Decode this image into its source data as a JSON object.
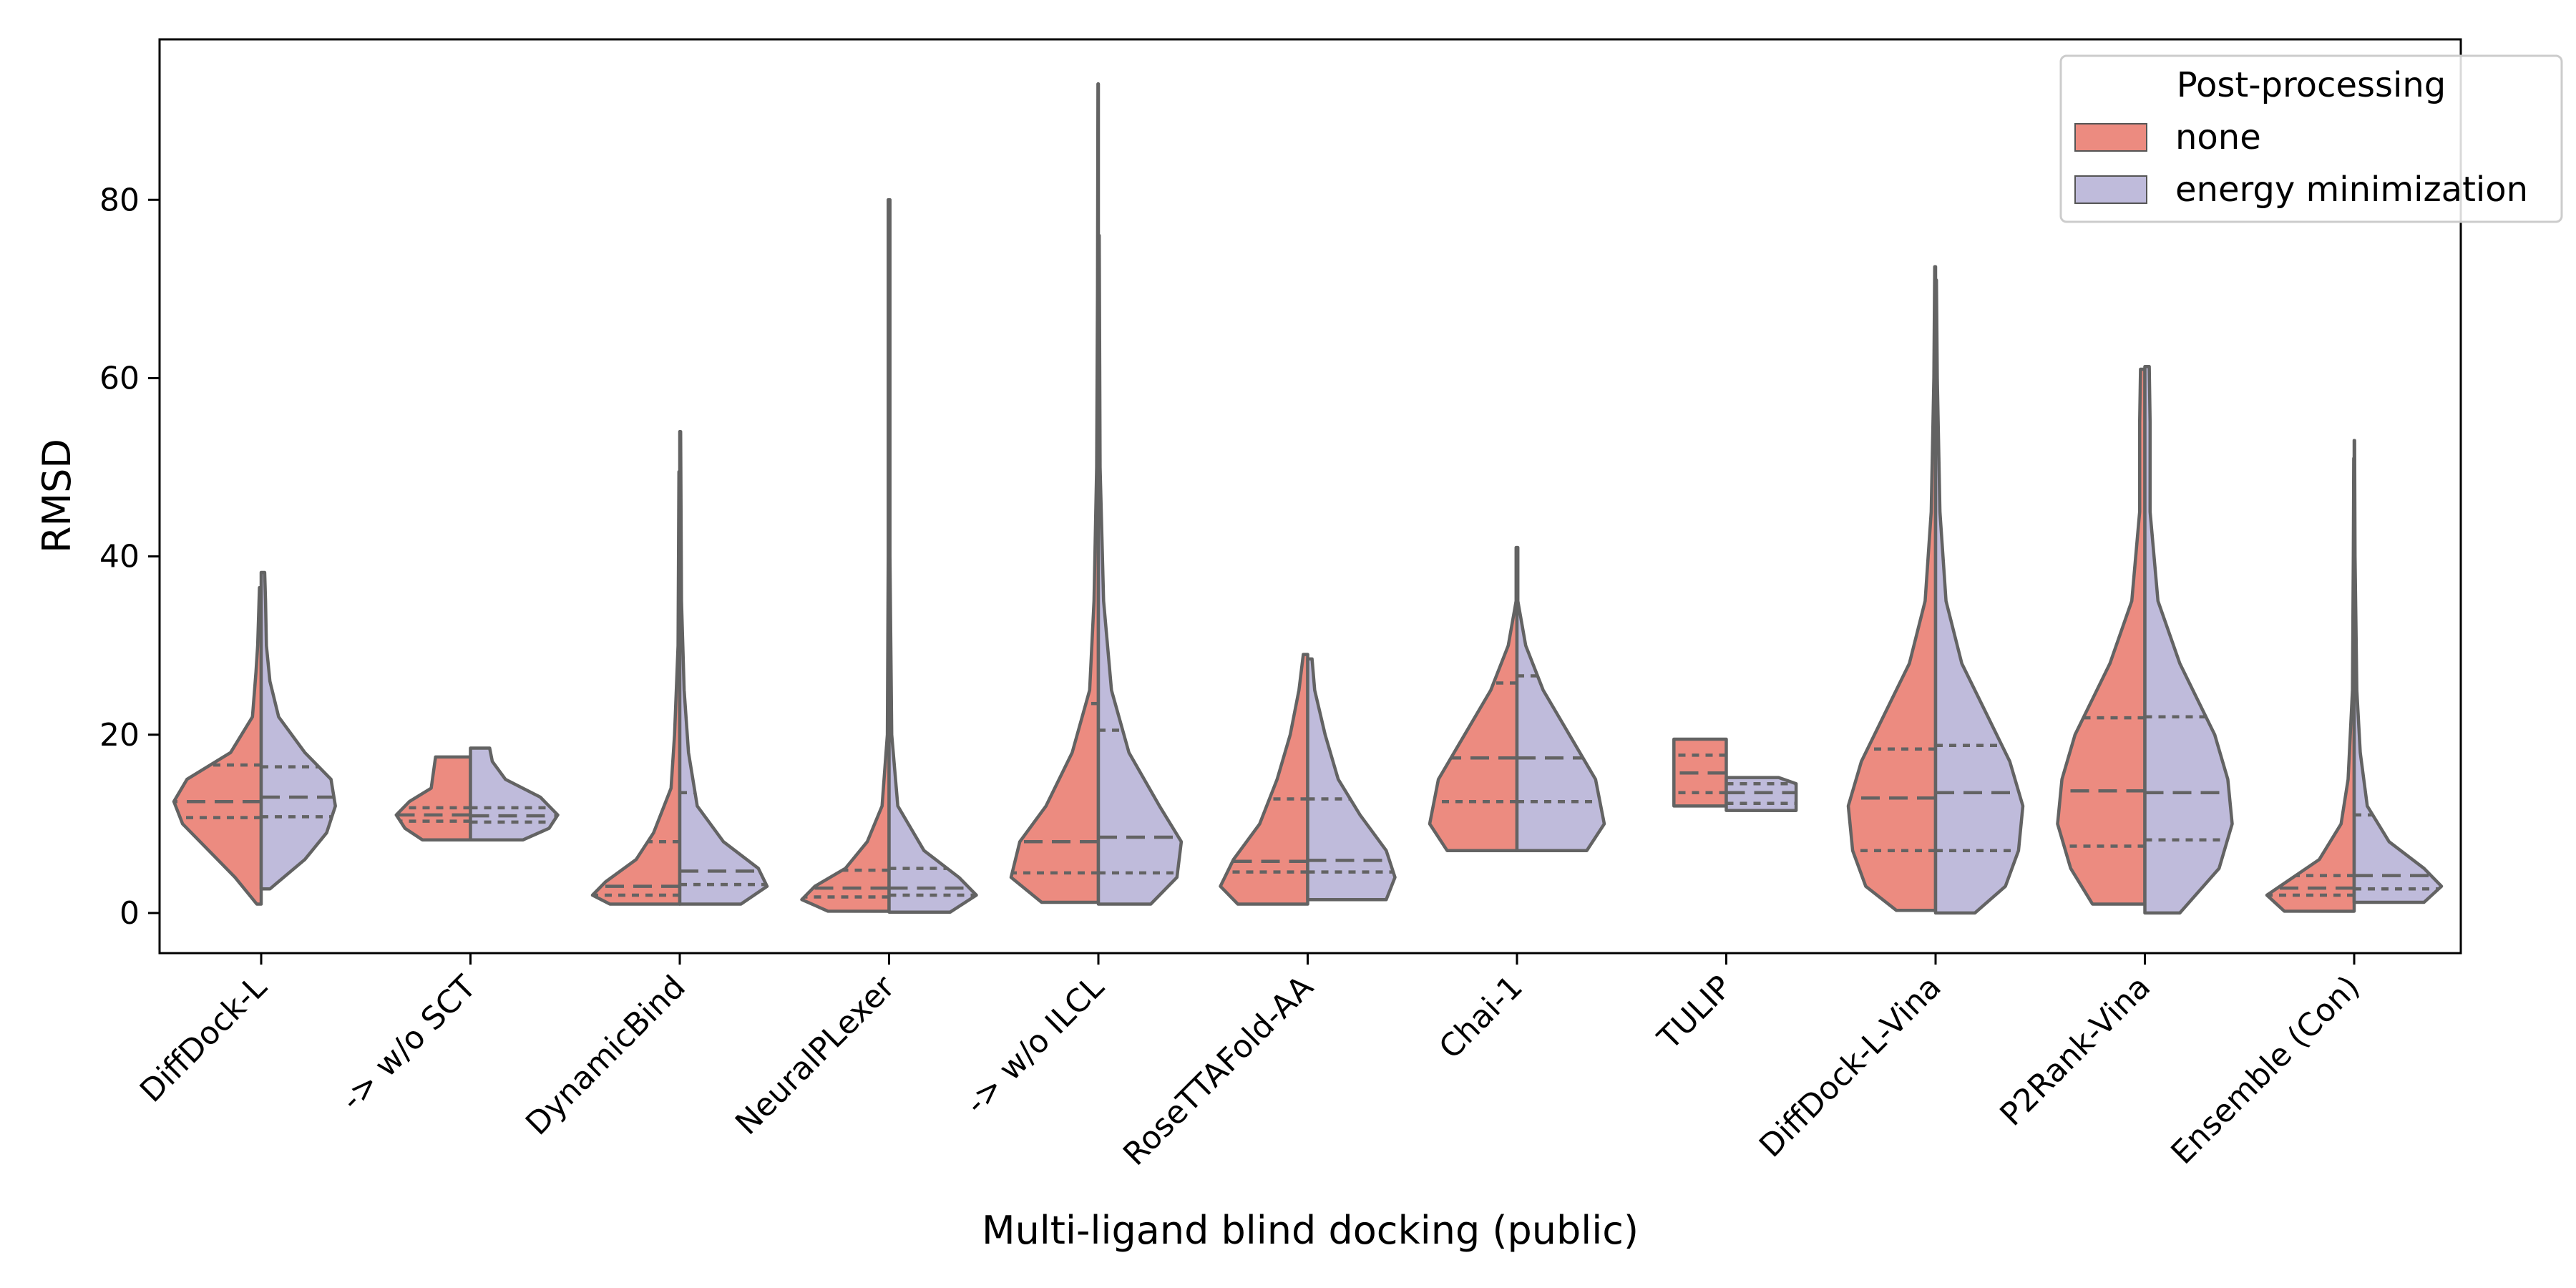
{
  "chart_data": {
    "type": "violin",
    "xlabel": "Multi-ligand blind docking (public)",
    "ylabel": "RMSD",
    "ylim": [
      -4.5,
      98
    ],
    "yticks": [
      0,
      20,
      40,
      60,
      80
    ],
    "grid": false,
    "split": true,
    "inner": "quartile",
    "legend": {
      "title": "Post-processing",
      "placement": "top-right",
      "entries": [
        {
          "label": "none",
          "color": "#ec8b80"
        },
        {
          "label": "energy minimization",
          "color": "#bfbbdb"
        }
      ]
    },
    "categories": [
      "DiffDock-L",
      "-> w/o SCT",
      "DynamicBind",
      "NeuralPLexer",
      "-> w/o ILCL",
      "RoseTTAFold-AA",
      "Chai-1",
      "TULIP",
      "DiffDock-L-Vina",
      "P2Rank-Vina",
      "Ensemble (Con)"
    ],
    "series": [
      {
        "name": "none",
        "color": "#ec8b80",
        "violins": [
          {
            "min": 1.0,
            "max": 36.5,
            "q1": 10.7,
            "median": 12.5,
            "q3": 16.6,
            "density": [
              [
                1.0,
                0.05
              ],
              [
                4,
                0.3
              ],
              [
                7,
                0.6
              ],
              [
                10,
                0.9
              ],
              [
                12.5,
                1.0
              ],
              [
                15,
                0.85
              ],
              [
                18,
                0.35
              ],
              [
                22,
                0.1
              ],
              [
                27,
                0.06
              ],
              [
                30,
                0.04
              ],
              [
                36.5,
                0.02
              ]
            ]
          },
          {
            "min": 8.2,
            "max": 17.5,
            "q1": 10.3,
            "median": 11.0,
            "q3": 11.8,
            "density": [
              [
                8.2,
                0.55
              ],
              [
                9.5,
                0.75
              ],
              [
                11,
                0.85
              ],
              [
                12.5,
                0.7
              ],
              [
                14,
                0.45
              ],
              [
                17.5,
                0.4
              ]
            ]
          },
          {
            "min": 1.0,
            "max": 49.5,
            "q1": 2.0,
            "median": 3.0,
            "q3": 8.0,
            "density": [
              [
                1.0,
                0.8
              ],
              [
                2,
                1.0
              ],
              [
                3.5,
                0.85
              ],
              [
                6,
                0.5
              ],
              [
                9,
                0.3
              ],
              [
                14,
                0.1
              ],
              [
                20,
                0.06
              ],
              [
                30,
                0.02
              ],
              [
                49.5,
                0.01
              ]
            ]
          },
          {
            "min": 0.2,
            "max": 80.0,
            "q1": 1.8,
            "median": 2.8,
            "q3": 4.8,
            "density": [
              [
                0.2,
                0.7
              ],
              [
                1.5,
                1.0
              ],
              [
                3,
                0.85
              ],
              [
                5,
                0.5
              ],
              [
                8,
                0.25
              ],
              [
                12,
                0.08
              ],
              [
                20,
                0.02
              ],
              [
                40,
                0.01
              ],
              [
                80,
                0.01
              ]
            ]
          },
          {
            "min": 1.2,
            "max": 93.0,
            "q1": 4.5,
            "median": 8.0,
            "q3": 23.5,
            "density": [
              [
                1.2,
                0.65
              ],
              [
                4,
                1.0
              ],
              [
                8,
                0.9
              ],
              [
                12,
                0.6
              ],
              [
                18,
                0.3
              ],
              [
                25,
                0.1
              ],
              [
                35,
                0.05
              ],
              [
                50,
                0.02
              ],
              [
                70,
                0.01
              ],
              [
                93,
                0.005
              ]
            ]
          },
          {
            "min": 1.0,
            "max": 29.0,
            "q1": 4.6,
            "median": 5.8,
            "q3": 12.8,
            "density": [
              [
                1.0,
                0.8
              ],
              [
                3,
                1.0
              ],
              [
                6,
                0.85
              ],
              [
                10,
                0.55
              ],
              [
                15,
                0.35
              ],
              [
                20,
                0.2
              ],
              [
                25,
                0.1
              ],
              [
                29,
                0.05
              ]
            ]
          },
          {
            "min": 7.0,
            "max": 41.0,
            "q1": 12.5,
            "median": 17.4,
            "q3": 25.8,
            "density": [
              [
                7,
                0.8
              ],
              [
                10,
                1.0
              ],
              [
                15,
                0.9
              ],
              [
                20,
                0.6
              ],
              [
                25,
                0.3
              ],
              [
                30,
                0.1
              ],
              [
                35,
                0.01
              ],
              [
                41,
                0.01
              ]
            ]
          },
          {
            "min": 12.0,
            "max": 19.5,
            "q1": 13.5,
            "median": 15.7,
            "q3": 17.7,
            "density": [
              [
                12,
                0.6
              ],
              [
                14,
                0.6
              ],
              [
                16,
                0.6
              ],
              [
                19.5,
                0.6
              ]
            ]
          },
          {
            "min": 0.3,
            "max": 72.5,
            "q1": 7.0,
            "median": 12.9,
            "q3": 18.4,
            "density": [
              [
                0.3,
                0.45
              ],
              [
                3,
                0.8
              ],
              [
                7,
                0.95
              ],
              [
                12,
                1.0
              ],
              [
                17,
                0.85
              ],
              [
                22,
                0.6
              ],
              [
                28,
                0.3
              ],
              [
                35,
                0.12
              ],
              [
                45,
                0.05
              ],
              [
                60,
                0.02
              ],
              [
                72.5,
                0.01
              ]
            ]
          },
          {
            "min": 1.0,
            "max": 61.0,
            "q1": 7.5,
            "median": 13.7,
            "q3": 21.9,
            "density": [
              [
                1.0,
                0.6
              ],
              [
                5,
                0.85
              ],
              [
                10,
                1.0
              ],
              [
                15,
                0.95
              ],
              [
                20,
                0.8
              ],
              [
                28,
                0.4
              ],
              [
                35,
                0.15
              ],
              [
                45,
                0.06
              ],
              [
                55,
                0.06
              ],
              [
                61,
                0.05
              ]
            ]
          },
          {
            "min": 0.2,
            "max": 51.0,
            "q1": 2.0,
            "median": 2.8,
            "q3": 4.2,
            "density": [
              [
                0.2,
                0.8
              ],
              [
                2,
                1.0
              ],
              [
                4,
                0.7
              ],
              [
                6,
                0.4
              ],
              [
                10,
                0.15
              ],
              [
                15,
                0.07
              ],
              [
                25,
                0.02
              ],
              [
                40,
                0.01
              ],
              [
                51,
                0.005
              ]
            ]
          }
        ]
      },
      {
        "name": "energy minimization",
        "color": "#bfbbdb",
        "violins": [
          {
            "min": 2.7,
            "max": 38.2,
            "q1": 10.8,
            "median": 13.0,
            "q3": 16.4,
            "density": [
              [
                2.7,
                0.1
              ],
              [
                6,
                0.5
              ],
              [
                9,
                0.75
              ],
              [
                12,
                0.85
              ],
              [
                15,
                0.8
              ],
              [
                18,
                0.5
              ],
              [
                22,
                0.2
              ],
              [
                26,
                0.1
              ],
              [
                30,
                0.06
              ],
              [
                35,
                0.05
              ],
              [
                38.2,
                0.04
              ]
            ]
          },
          {
            "min": 8.2,
            "max": 18.5,
            "q1": 10.2,
            "median": 10.9,
            "q3": 11.8,
            "density": [
              [
                8.2,
                0.6
              ],
              [
                9.5,
                0.9
              ],
              [
                11,
                1.0
              ],
              [
                13,
                0.8
              ],
              [
                15,
                0.4
              ],
              [
                17,
                0.25
              ],
              [
                18.5,
                0.22
              ]
            ]
          },
          {
            "min": 1.0,
            "max": 54.0,
            "q1": 3.2,
            "median": 4.7,
            "q3": 13.5,
            "density": [
              [
                1.0,
                0.7
              ],
              [
                3,
                1.0
              ],
              [
                5,
                0.9
              ],
              [
                8,
                0.5
              ],
              [
                12,
                0.2
              ],
              [
                18,
                0.1
              ],
              [
                25,
                0.05
              ],
              [
                35,
                0.02
              ],
              [
                54,
                0.01
              ]
            ]
          },
          {
            "min": 0.1,
            "max": 80.0,
            "q1": 2.0,
            "median": 2.8,
            "q3": 5.0,
            "density": [
              [
                0.1,
                0.7
              ],
              [
                2,
                1.0
              ],
              [
                4,
                0.8
              ],
              [
                7,
                0.4
              ],
              [
                12,
                0.1
              ],
              [
                20,
                0.03
              ],
              [
                40,
                0.01
              ],
              [
                80,
                0.01
              ]
            ]
          },
          {
            "min": 1.0,
            "max": 76.0,
            "q1": 4.5,
            "median": 8.5,
            "q3": 20.5,
            "density": [
              [
                1,
                0.6
              ],
              [
                4,
                0.9
              ],
              [
                8,
                0.95
              ],
              [
                12,
                0.7
              ],
              [
                18,
                0.35
              ],
              [
                25,
                0.15
              ],
              [
                35,
                0.06
              ],
              [
                50,
                0.02
              ],
              [
                76,
                0.01
              ]
            ]
          },
          {
            "min": 1.5,
            "max": 28.5,
            "q1": 4.6,
            "median": 5.9,
            "q3": 12.8,
            "density": [
              [
                1.5,
                0.9
              ],
              [
                4,
                1.0
              ],
              [
                7,
                0.9
              ],
              [
                11,
                0.6
              ],
              [
                15,
                0.35
              ],
              [
                20,
                0.2
              ],
              [
                25,
                0.08
              ],
              [
                28.5,
                0.05
              ]
            ]
          },
          {
            "min": 7.0,
            "max": 41.0,
            "q1": 12.5,
            "median": 17.4,
            "q3": 26.6,
            "density": [
              [
                7,
                0.8
              ],
              [
                10,
                1.0
              ],
              [
                15,
                0.9
              ],
              [
                20,
                0.6
              ],
              [
                25,
                0.3
              ],
              [
                30,
                0.1
              ],
              [
                35,
                0.01
              ],
              [
                41,
                0.01
              ]
            ]
          },
          {
            "min": 11.5,
            "max": 15.2,
            "q1": 12.3,
            "median": 13.5,
            "q3": 14.5,
            "density": [
              [
                11.5,
                0.8
              ],
              [
                13,
                0.8
              ],
              [
                14.5,
                0.8
              ],
              [
                15.2,
                0.6
              ]
            ]
          },
          {
            "min": 0.0,
            "max": 71.0,
            "q1": 7.0,
            "median": 13.5,
            "q3": 18.8,
            "density": [
              [
                0.0,
                0.45
              ],
              [
                3,
                0.8
              ],
              [
                7,
                0.95
              ],
              [
                12,
                1.0
              ],
              [
                17,
                0.85
              ],
              [
                22,
                0.6
              ],
              [
                28,
                0.3
              ],
              [
                35,
                0.12
              ],
              [
                45,
                0.05
              ],
              [
                60,
                0.02
              ],
              [
                71,
                0.01
              ]
            ]
          },
          {
            "min": 0.0,
            "max": 61.3,
            "q1": 8.2,
            "median": 13.5,
            "q3": 22.0,
            "density": [
              [
                0.0,
                0.4
              ],
              [
                5,
                0.85
              ],
              [
                10,
                1.0
              ],
              [
                15,
                0.95
              ],
              [
                20,
                0.8
              ],
              [
                28,
                0.4
              ],
              [
                35,
                0.15
              ],
              [
                45,
                0.06
              ],
              [
                55,
                0.06
              ],
              [
                61.3,
                0.05
              ]
            ]
          },
          {
            "min": 1.2,
            "max": 53.0,
            "q1": 2.7,
            "median": 4.2,
            "q3": 11.0,
            "density": [
              [
                1.2,
                0.8
              ],
              [
                3,
                1.0
              ],
              [
                5,
                0.8
              ],
              [
                8,
                0.4
              ],
              [
                12,
                0.15
              ],
              [
                18,
                0.07
              ],
              [
                25,
                0.03
              ],
              [
                40,
                0.01
              ],
              [
                53,
                0.005
              ]
            ]
          }
        ]
      }
    ]
  }
}
